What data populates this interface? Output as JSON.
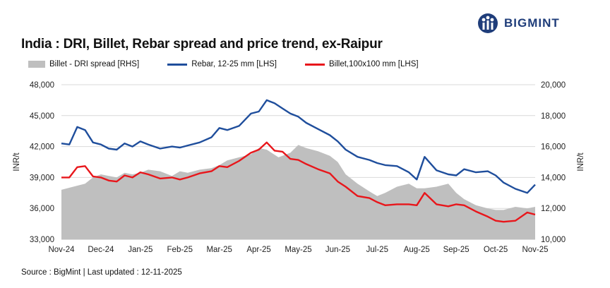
{
  "brand": {
    "name": "BIGMINT",
    "color": "#1f3d7a",
    "icon": "bigmint-logo-icon"
  },
  "title": "India : DRI, Billet, Rebar spread and price trend, ex-Raipur",
  "source": "Source : BigMint | Last updated : 12-11-2025",
  "chart_data": {
    "type": "line",
    "title": "India : DRI, Billet, Rebar spread and price trend, ex-Raipur",
    "ylabel": "INR/t",
    "y2label": "INR/t",
    "ylim": [
      33000,
      48000
    ],
    "y2lim": [
      10000,
      20000
    ],
    "yticks": [
      "33,000",
      "36,000",
      "39,000",
      "42,000",
      "45,000",
      "48,000"
    ],
    "y2ticks": [
      "10,000",
      "12,000",
      "14,000",
      "16,000",
      "18,000",
      "20,000"
    ],
    "xticks": [
      "Nov-24",
      "Dec-24",
      "Jan-25",
      "Feb-25",
      "Mar-25",
      "Apr-25",
      "May-25",
      "Jun-25",
      "Jul-25",
      "Aug-25",
      "Sep-25",
      "Oct-25",
      "Nov-25"
    ],
    "legend_position": "top",
    "colors": {
      "area": "#bfbfbf",
      "rebar": "#1f4e9c",
      "billet": "#e8161b"
    },
    "series": [
      {
        "name": "Billet - DRI spread  [RHS]",
        "type": "area",
        "axis": "right",
        "x": [
          0,
          0.3,
          0.6,
          0.8,
          1,
          1.2,
          1.4,
          1.6,
          1.8,
          2,
          2.2,
          2.5,
          2.8,
          3,
          3.2,
          3.5,
          3.8,
          4,
          4.2,
          4.5,
          4.8,
          5,
          5.2,
          5.5,
          5.8,
          6,
          6.2,
          6.5,
          6.8,
          7,
          7.2,
          7.5,
          7.8,
          8,
          8.2,
          8.5,
          8.8,
          9,
          9.2,
          9.5,
          9.8,
          10,
          10.2,
          10.5,
          10.8,
          11,
          11.2,
          11.5,
          11.8,
          12
        ],
        "values": [
          13200,
          13400,
          13600,
          14000,
          14200,
          14100,
          14000,
          14300,
          14200,
          14300,
          14500,
          14400,
          14100,
          14400,
          14300,
          14500,
          14600,
          14800,
          15100,
          15300,
          15500,
          15900,
          15800,
          15300,
          15600,
          16100,
          15900,
          15700,
          15400,
          15000,
          14200,
          13600,
          13100,
          12800,
          13000,
          13400,
          13600,
          13300,
          13300,
          13400,
          13600,
          13000,
          12600,
          12200,
          12000,
          11900,
          11900,
          12100,
          12000,
          12100
        ]
      },
      {
        "name": "Rebar, 12-25 mm [LHS]",
        "type": "line",
        "axis": "left",
        "x": [
          0,
          0.2,
          0.4,
          0.6,
          0.8,
          1,
          1.2,
          1.4,
          1.6,
          1.8,
          2,
          2.2,
          2.5,
          2.8,
          3,
          3.2,
          3.5,
          3.8,
          4,
          4.2,
          4.5,
          4.8,
          5,
          5.2,
          5.4,
          5.6,
          5.8,
          6,
          6.2,
          6.5,
          6.8,
          7,
          7.2,
          7.5,
          7.8,
          8,
          8.2,
          8.5,
          8.8,
          9,
          9.2,
          9.5,
          9.8,
          10,
          10.2,
          10.5,
          10.8,
          11,
          11.2,
          11.5,
          11.8,
          12
        ],
        "values": [
          42300,
          42200,
          43900,
          43600,
          42400,
          42200,
          41800,
          41700,
          42300,
          42000,
          42500,
          42200,
          41800,
          42000,
          41900,
          42100,
          42400,
          42900,
          43800,
          43600,
          44000,
          45200,
          45400,
          46500,
          46200,
          45700,
          45200,
          44900,
          44300,
          43700,
          43100,
          42500,
          41700,
          41000,
          40700,
          40400,
          40200,
          40100,
          39500,
          38800,
          41000,
          39700,
          39300,
          39200,
          39800,
          39500,
          39600,
          39200,
          38500,
          37900,
          37500,
          38300
        ]
      },
      {
        "name": "Billet,100x100 mm [LHS]",
        "type": "line",
        "axis": "left",
        "x": [
          0,
          0.2,
          0.4,
          0.6,
          0.8,
          1,
          1.2,
          1.4,
          1.6,
          1.8,
          2,
          2.2,
          2.5,
          2.8,
          3,
          3.2,
          3.5,
          3.8,
          4,
          4.2,
          4.5,
          4.8,
          5,
          5.2,
          5.4,
          5.6,
          5.8,
          6,
          6.2,
          6.5,
          6.8,
          7,
          7.2,
          7.5,
          7.8,
          8,
          8.2,
          8.5,
          8.8,
          9,
          9.2,
          9.5,
          9.8,
          10,
          10.2,
          10.5,
          10.8,
          11,
          11.2,
          11.5,
          11.8,
          12
        ],
        "values": [
          39000,
          39000,
          40000,
          40100,
          39100,
          39000,
          38700,
          38600,
          39200,
          39000,
          39500,
          39300,
          38900,
          39000,
          38800,
          39000,
          39400,
          39600,
          40100,
          40000,
          40600,
          41400,
          41700,
          42400,
          41600,
          41500,
          40800,
          40700,
          40300,
          39800,
          39400,
          38600,
          38100,
          37200,
          37000,
          36600,
          36300,
          36400,
          36400,
          36300,
          37500,
          36400,
          36200,
          36400,
          36300,
          35700,
          35200,
          34800,
          34700,
          34800,
          35600,
          35400
        ]
      }
    ]
  }
}
